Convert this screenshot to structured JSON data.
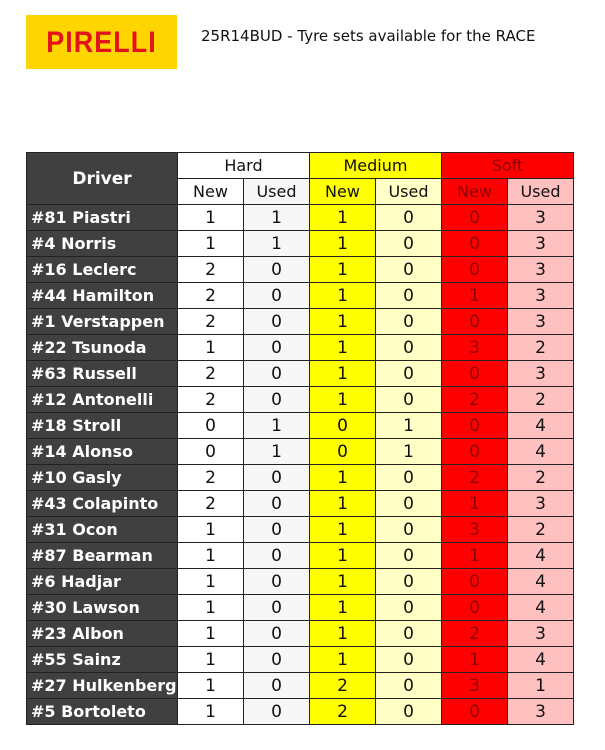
{
  "logo": {
    "text": "PIRELLI",
    "color": "#e3131b",
    "background": "#ffd500"
  },
  "title": "25R14BUD - Tyre sets available for the RACE",
  "table": {
    "driver_header": "Driver",
    "compounds": [
      {
        "label": "Hard",
        "color": "#ffffff"
      },
      {
        "label": "Medium",
        "color": "#ffff00"
      },
      {
        "label": "Soft",
        "color": "#ff0000"
      }
    ],
    "sub_headers": [
      "New",
      "Used",
      "New",
      "Used",
      "New",
      "Used"
    ],
    "rows": [
      {
        "driver": "#81 Piastri",
        "values": [
          "1",
          "1",
          "1",
          "0",
          "0",
          "3"
        ]
      },
      {
        "driver": "#4 Norris",
        "values": [
          "1",
          "1",
          "1",
          "0",
          "0",
          "3"
        ]
      },
      {
        "driver": "#16 Leclerc",
        "values": [
          "2",
          "0",
          "1",
          "0",
          "0",
          "3"
        ]
      },
      {
        "driver": "#44 Hamilton",
        "values": [
          "2",
          "0",
          "1",
          "0",
          "1",
          "3"
        ]
      },
      {
        "driver": "#1 Verstappen",
        "values": [
          "2",
          "0",
          "1",
          "0",
          "0",
          "3"
        ]
      },
      {
        "driver": "#22 Tsunoda",
        "values": [
          "1",
          "0",
          "1",
          "0",
          "3",
          "2"
        ]
      },
      {
        "driver": "#63 Russell",
        "values": [
          "2",
          "0",
          "1",
          "0",
          "0",
          "3"
        ]
      },
      {
        "driver": "#12 Antonelli",
        "values": [
          "2",
          "0",
          "1",
          "0",
          "2",
          "2"
        ]
      },
      {
        "driver": "#18 Stroll",
        "values": [
          "0",
          "1",
          "0",
          "1",
          "0",
          "4"
        ]
      },
      {
        "driver": "#14 Alonso",
        "values": [
          "0",
          "1",
          "0",
          "1",
          "0",
          "4"
        ]
      },
      {
        "driver": "#10 Gasly",
        "values": [
          "2",
          "0",
          "1",
          "0",
          "2",
          "2"
        ]
      },
      {
        "driver": "#43 Colapinto",
        "values": [
          "2",
          "0",
          "1",
          "0",
          "1",
          "3"
        ]
      },
      {
        "driver": "#31 Ocon",
        "values": [
          "1",
          "0",
          "1",
          "0",
          "3",
          "2"
        ]
      },
      {
        "driver": "#87 Bearman",
        "values": [
          "1",
          "0",
          "1",
          "0",
          "1",
          "4"
        ]
      },
      {
        "driver": "#6 Hadjar",
        "values": [
          "1",
          "0",
          "1",
          "0",
          "0",
          "4"
        ]
      },
      {
        "driver": "#30 Lawson",
        "values": [
          "1",
          "0",
          "1",
          "0",
          "0",
          "4"
        ]
      },
      {
        "driver": "#23 Albon",
        "values": [
          "1",
          "0",
          "1",
          "0",
          "2",
          "3"
        ]
      },
      {
        "driver": "#55 Sainz",
        "values": [
          "1",
          "0",
          "1",
          "0",
          "1",
          "4"
        ]
      },
      {
        "driver": "#27 Hulkenberg",
        "values": [
          "1",
          "0",
          "2",
          "0",
          "3",
          "1"
        ]
      },
      {
        "driver": "#5 Bortoleto",
        "values": [
          "1",
          "0",
          "2",
          "0",
          "0",
          "3"
        ]
      }
    ]
  }
}
